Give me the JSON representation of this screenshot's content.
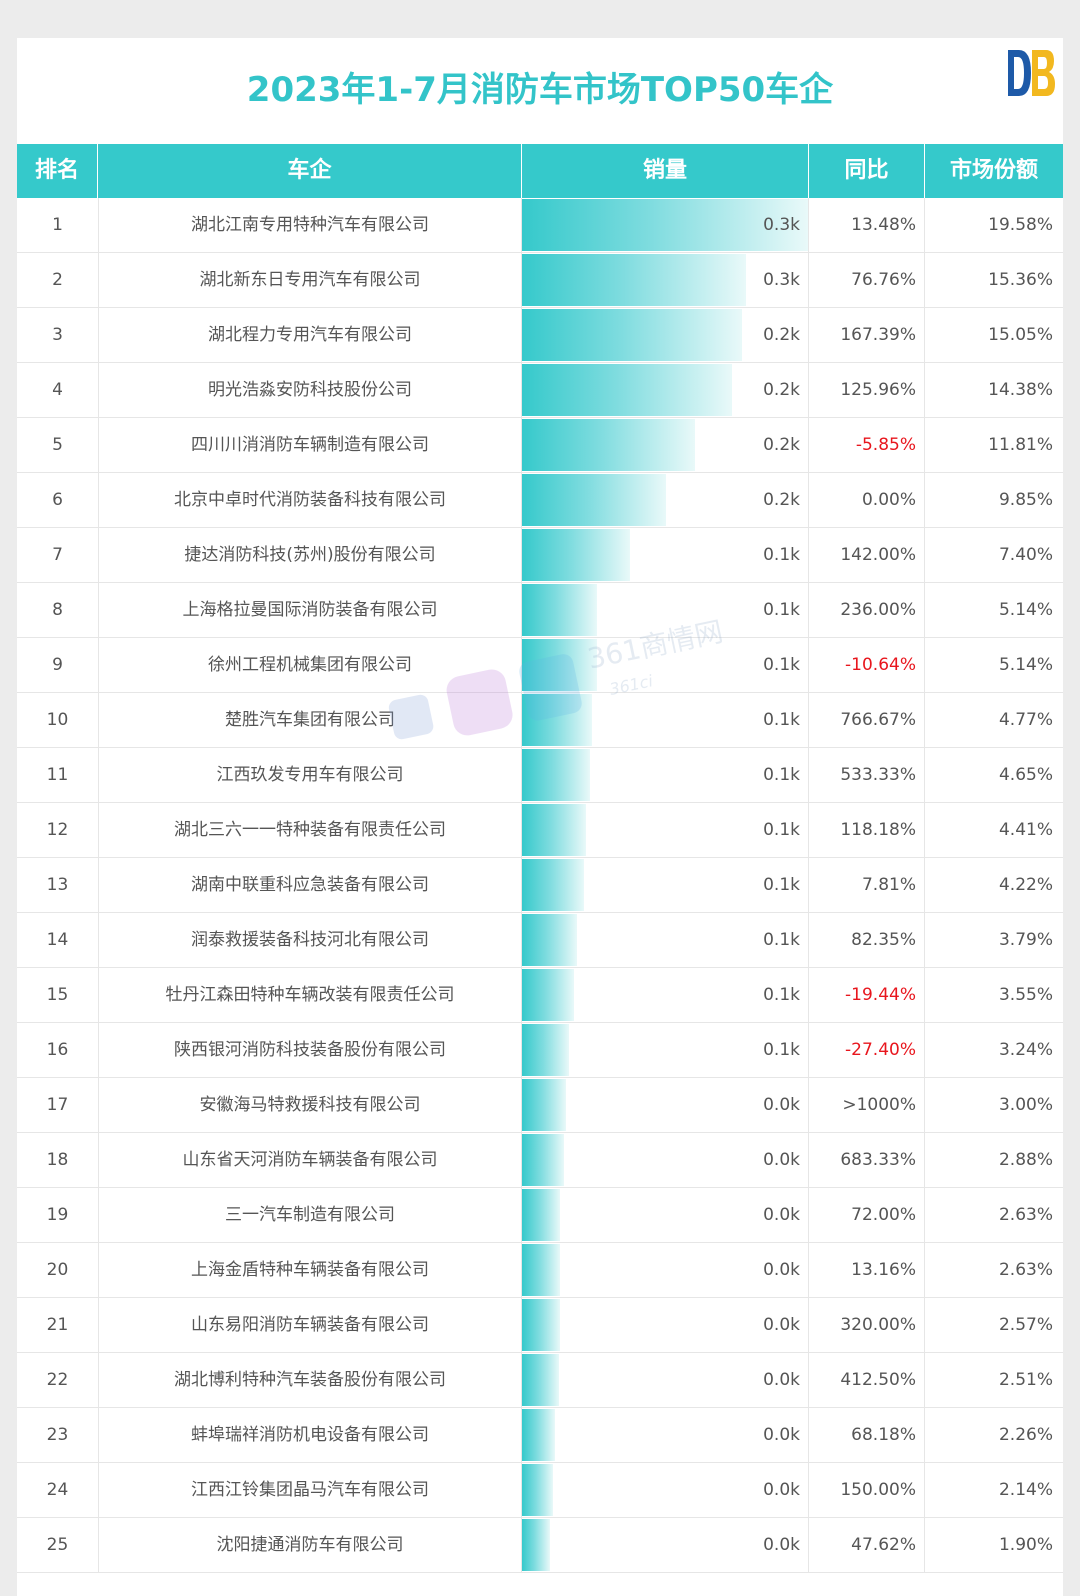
{
  "title": "2023年1-7月消防车市场TOP50车企",
  "logo_icon": "db-logo-icon",
  "watermark_text": "361商情网",
  "watermark_subtext": "361ci",
  "colors": {
    "accent": "#35c9cb",
    "title": "#33c4c9",
    "negative": "#e8161d"
  },
  "columns": [
    "排名",
    "车企",
    "销量",
    "同比",
    "市场份额"
  ],
  "chart_data": {
    "type": "table",
    "title": "2023年1-7月消防车市场TOP50车企",
    "columns": [
      "排名",
      "车企",
      "销量",
      "同比",
      "市场份额"
    ],
    "bar_column": "销量",
    "bar_values_from": "市场份额",
    "rows": [
      {
        "rank": "1",
        "company": "湖北江南专用特种汽车有限公司",
        "sales": "0.3k",
        "yoy": "13.48%",
        "share": "19.58%",
        "share_value": 19.58
      },
      {
        "rank": "2",
        "company": "湖北新东日专用汽车有限公司",
        "sales": "0.3k",
        "yoy": "76.76%",
        "share": "15.36%",
        "share_value": 15.36
      },
      {
        "rank": "3",
        "company": "湖北程力专用汽车有限公司",
        "sales": "0.2k",
        "yoy": "167.39%",
        "share": "15.05%",
        "share_value": 15.05
      },
      {
        "rank": "4",
        "company": "明光浩淼安防科技股份公司",
        "sales": "0.2k",
        "yoy": "125.96%",
        "share": "14.38%",
        "share_value": 14.38
      },
      {
        "rank": "5",
        "company": "四川川消消防车辆制造有限公司",
        "sales": "0.2k",
        "yoy": "-5.85%",
        "share": "11.81%",
        "share_value": 11.81
      },
      {
        "rank": "6",
        "company": "北京中卓时代消防装备科技有限公司",
        "sales": "0.2k",
        "yoy": "0.00%",
        "share": "9.85%",
        "share_value": 9.85
      },
      {
        "rank": "7",
        "company": "捷达消防科技(苏州)股份有限公司",
        "sales": "0.1k",
        "yoy": "142.00%",
        "share": "7.40%",
        "share_value": 7.4
      },
      {
        "rank": "8",
        "company": "上海格拉曼国际消防装备有限公司",
        "sales": "0.1k",
        "yoy": "236.00%",
        "share": "5.14%",
        "share_value": 5.14
      },
      {
        "rank": "9",
        "company": "徐州工程机械集团有限公司",
        "sales": "0.1k",
        "yoy": "-10.64%",
        "share": "5.14%",
        "share_value": 5.14
      },
      {
        "rank": "10",
        "company": "楚胜汽车集团有限公司",
        "sales": "0.1k",
        "yoy": "766.67%",
        "share": "4.77%",
        "share_value": 4.77
      },
      {
        "rank": "11",
        "company": "江西玖发专用车有限公司",
        "sales": "0.1k",
        "yoy": "533.33%",
        "share": "4.65%",
        "share_value": 4.65
      },
      {
        "rank": "12",
        "company": "湖北三六一一特种装备有限责任公司",
        "sales": "0.1k",
        "yoy": "118.18%",
        "share": "4.41%",
        "share_value": 4.41
      },
      {
        "rank": "13",
        "company": "湖南中联重科应急装备有限公司",
        "sales": "0.1k",
        "yoy": "7.81%",
        "share": "4.22%",
        "share_value": 4.22
      },
      {
        "rank": "14",
        "company": "润泰救援装备科技河北有限公司",
        "sales": "0.1k",
        "yoy": "82.35%",
        "share": "3.79%",
        "share_value": 3.79
      },
      {
        "rank": "15",
        "company": "牡丹江森田特种车辆改装有限责任公司",
        "sales": "0.1k",
        "yoy": "-19.44%",
        "share": "3.55%",
        "share_value": 3.55
      },
      {
        "rank": "16",
        "company": "陕西银河消防科技装备股份有限公司",
        "sales": "0.1k",
        "yoy": "-27.40%",
        "share": "3.24%",
        "share_value": 3.24
      },
      {
        "rank": "17",
        "company": "安徽海马特救援科技有限公司",
        "sales": "0.0k",
        "yoy": ">1000%",
        "share": "3.00%",
        "share_value": 3.0
      },
      {
        "rank": "18",
        "company": "山东省天河消防车辆装备有限公司",
        "sales": "0.0k",
        "yoy": "683.33%",
        "share": "2.88%",
        "share_value": 2.88
      },
      {
        "rank": "19",
        "company": "三一汽车制造有限公司",
        "sales": "0.0k",
        "yoy": "72.00%",
        "share": "2.63%",
        "share_value": 2.63
      },
      {
        "rank": "20",
        "company": "上海金盾特种车辆装备有限公司",
        "sales": "0.0k",
        "yoy": "13.16%",
        "share": "2.63%",
        "share_value": 2.63
      },
      {
        "rank": "21",
        "company": "山东易阳消防车辆装备有限公司",
        "sales": "0.0k",
        "yoy": "320.00%",
        "share": "2.57%",
        "share_value": 2.57
      },
      {
        "rank": "22",
        "company": "湖北博利特种汽车装备股份有限公司",
        "sales": "0.0k",
        "yoy": "412.50%",
        "share": "2.51%",
        "share_value": 2.51
      },
      {
        "rank": "23",
        "company": "蚌埠瑞祥消防机电设备有限公司",
        "sales": "0.0k",
        "yoy": "68.18%",
        "share": "2.26%",
        "share_value": 2.26
      },
      {
        "rank": "24",
        "company": "江西江铃集团晶马汽车有限公司",
        "sales": "0.0k",
        "yoy": "150.00%",
        "share": "2.14%",
        "share_value": 2.14
      },
      {
        "rank": "25",
        "company": "沈阳捷通消防车有限公司",
        "sales": "0.0k",
        "yoy": "47.62%",
        "share": "1.90%",
        "share_value": 1.9
      }
    ]
  }
}
